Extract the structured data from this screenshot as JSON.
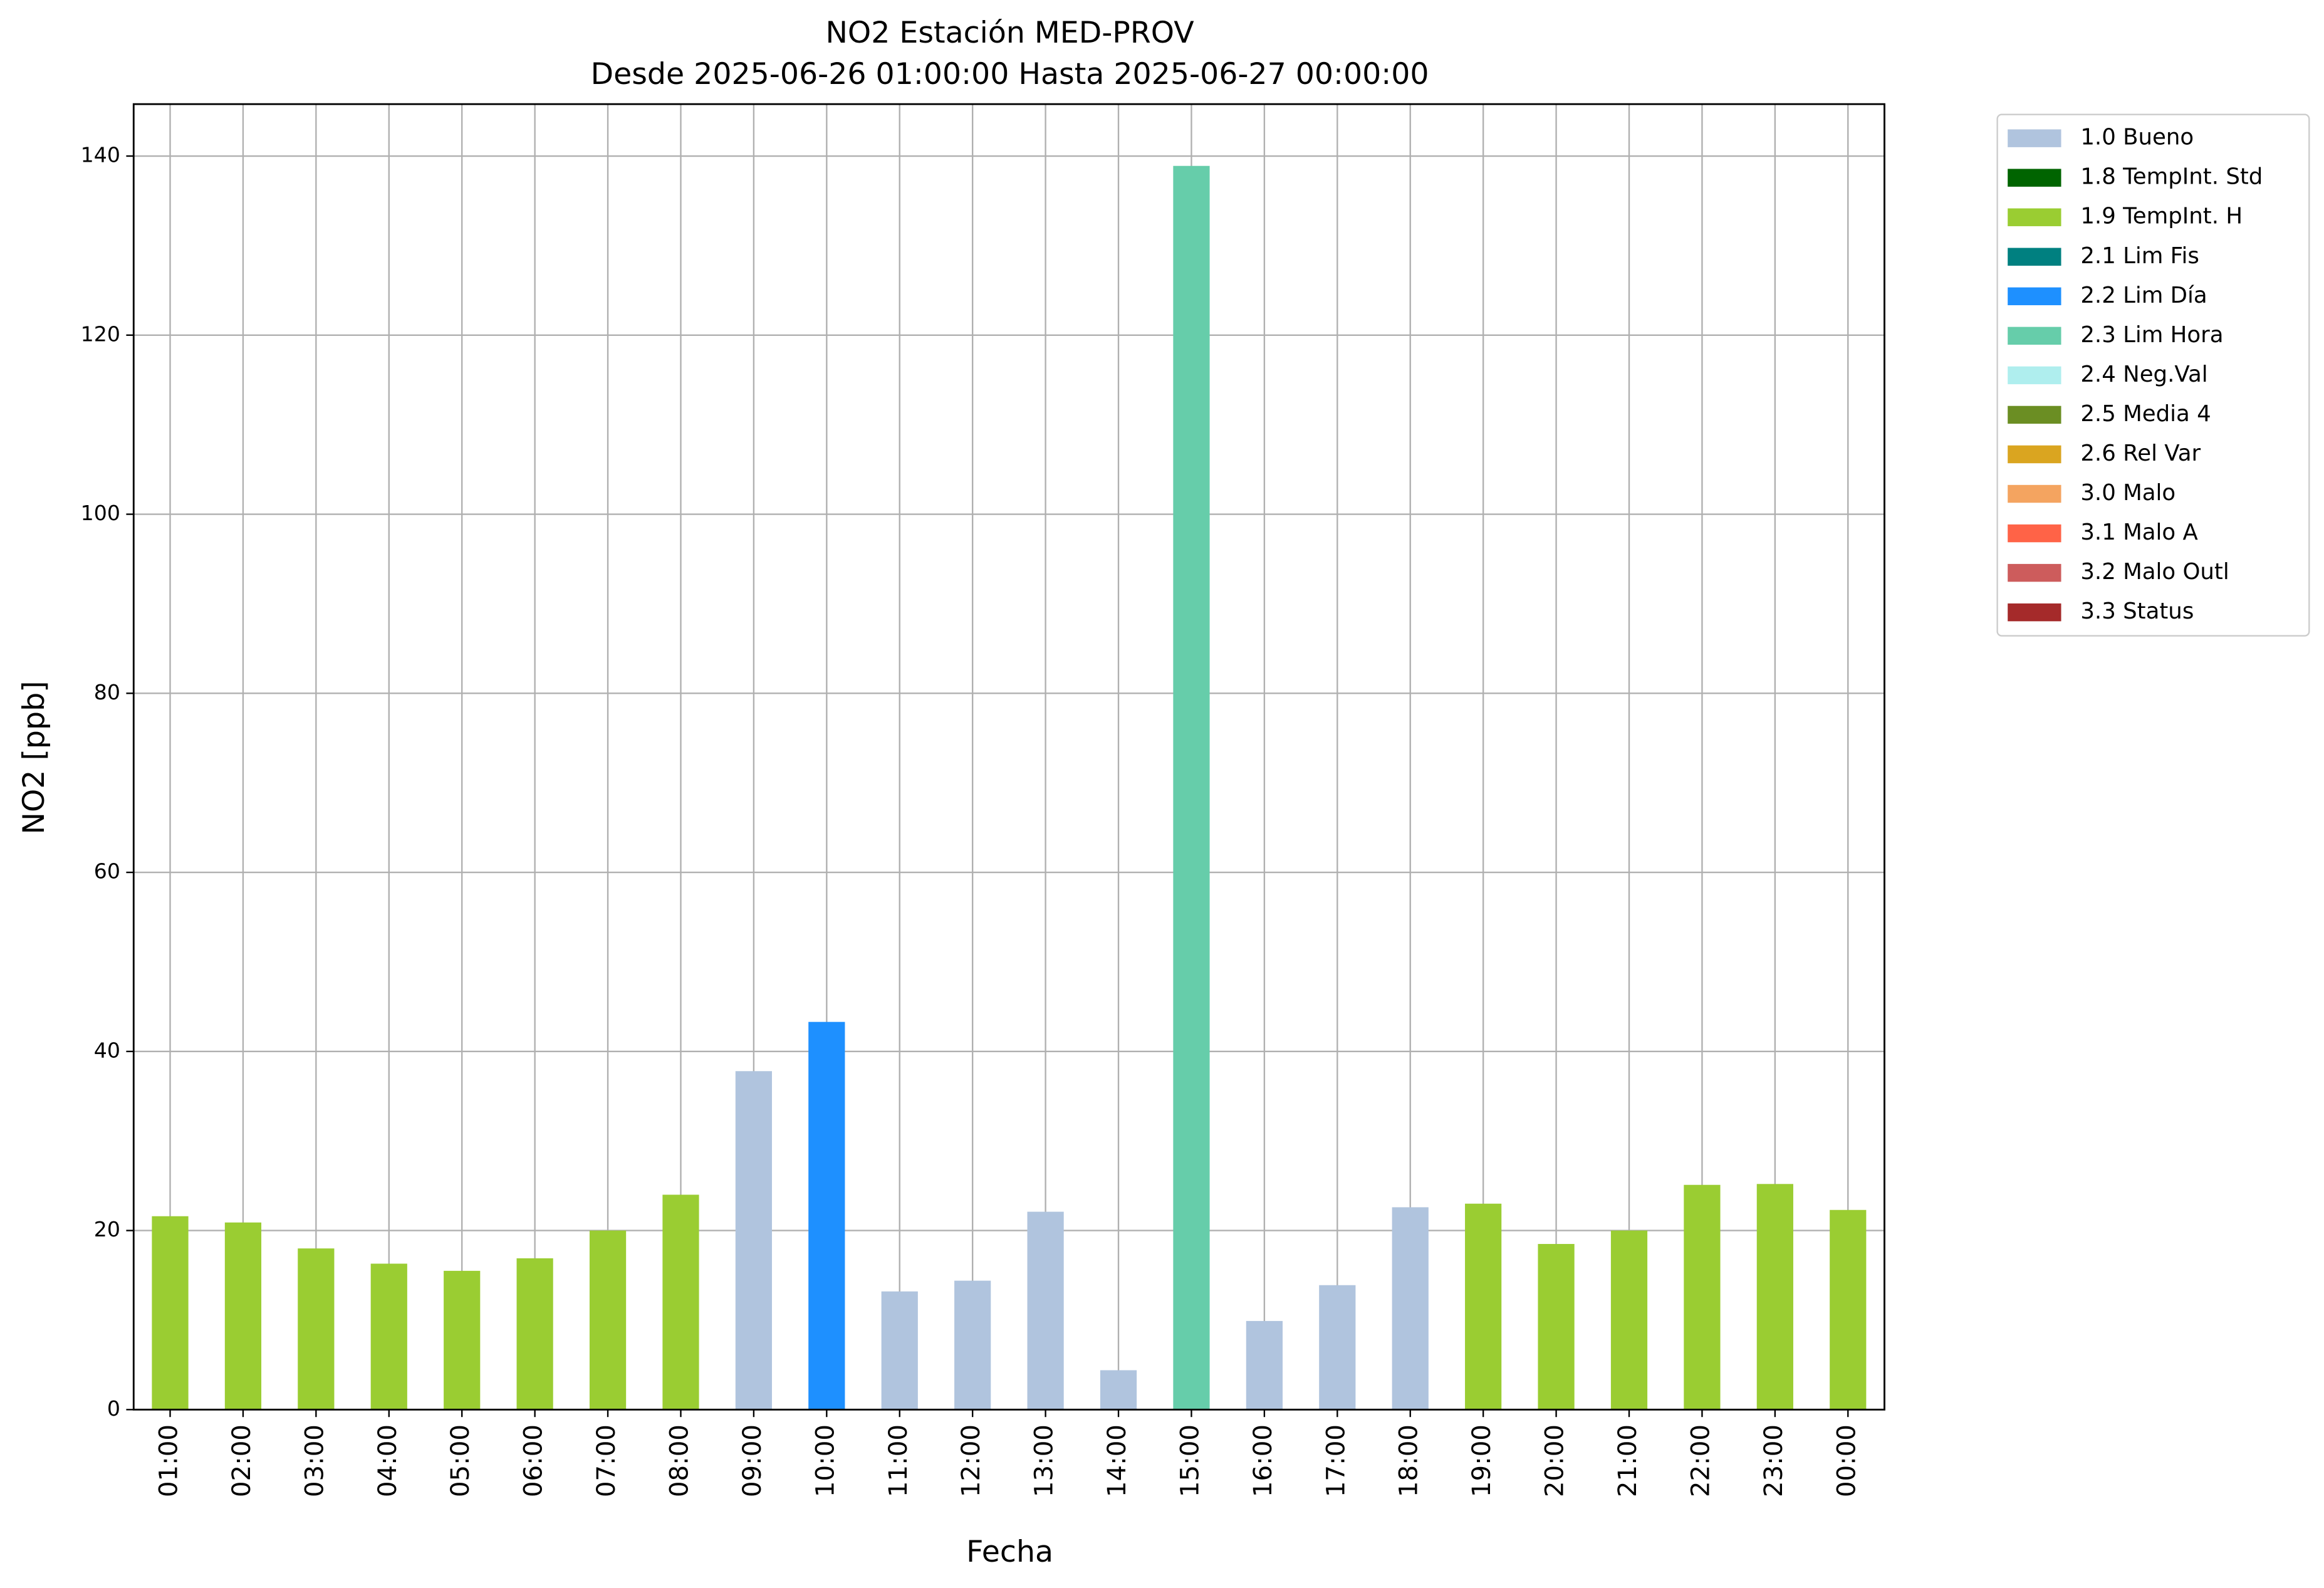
{
  "chart_data": {
    "type": "bar",
    "stacked": true,
    "title": "NO2 Estación MED-PROV",
    "subtitle": "Desde 2025-06-26 01:00:00 Hasta 2025-06-27 00:00:00",
    "x_label": "Fecha",
    "y_label": "NO2 [ppb]",
    "categories": [
      "01:00",
      "02:00",
      "03:00",
      "04:00",
      "05:00",
      "06:00",
      "07:00",
      "08:00",
      "09:00",
      "10:00",
      "11:00",
      "12:00",
      "13:00",
      "14:00",
      "15:00",
      "16:00",
      "17:00",
      "18:00",
      "19:00",
      "20:00",
      "21:00",
      "22:00",
      "23:00",
      "00:00"
    ],
    "series": [
      {
        "name": "1.0 Bueno",
        "color": "#b0c4de",
        "values": [
          null,
          null,
          null,
          null,
          null,
          null,
          null,
          null,
          37.8,
          null,
          13.2,
          14.4,
          22.1,
          4.4,
          null,
          9.9,
          13.9,
          22.6,
          null,
          null,
          null,
          null,
          null,
          null
        ]
      },
      {
        "name": "1.8 TempInt. Std",
        "color": "#006400",
        "values": [
          null,
          null,
          null,
          null,
          null,
          null,
          null,
          null,
          null,
          null,
          null,
          null,
          null,
          null,
          null,
          null,
          null,
          null,
          null,
          null,
          null,
          null,
          null,
          null
        ]
      },
      {
        "name": "1.9 TempInt. H",
        "color": "#9acd32",
        "values": [
          21.6,
          20.9,
          18.0,
          16.3,
          15.5,
          16.9,
          20.0,
          24.0,
          null,
          null,
          null,
          null,
          null,
          null,
          null,
          null,
          null,
          null,
          23.0,
          18.5,
          20.0,
          25.1,
          25.2,
          22.3
        ]
      },
      {
        "name": "2.1 Lim Fis",
        "color": "#008080",
        "values": [
          null,
          null,
          null,
          null,
          null,
          null,
          null,
          null,
          null,
          null,
          null,
          null,
          null,
          null,
          null,
          null,
          null,
          null,
          null,
          null,
          null,
          null,
          null,
          null
        ]
      },
      {
        "name": "2.2 Lim Día",
        "color": "#1e90ff",
        "values": [
          null,
          null,
          null,
          null,
          null,
          null,
          null,
          null,
          null,
          43.3,
          null,
          null,
          null,
          null,
          null,
          null,
          null,
          null,
          null,
          null,
          null,
          null,
          null,
          null
        ]
      },
      {
        "name": "2.3 Lim Hora",
        "color": "#66cdaa",
        "values": [
          null,
          null,
          null,
          null,
          null,
          null,
          null,
          null,
          null,
          null,
          null,
          null,
          null,
          null,
          138.9,
          null,
          null,
          null,
          null,
          null,
          null,
          null,
          null,
          null
        ]
      },
      {
        "name": "2.4 Neg.Val",
        "color": "#afeeee",
        "values": [
          null,
          null,
          null,
          null,
          null,
          null,
          null,
          null,
          null,
          null,
          null,
          null,
          null,
          null,
          null,
          null,
          null,
          null,
          null,
          null,
          null,
          null,
          null,
          null
        ]
      },
      {
        "name": "2.5 Media 4",
        "color": "#6b8e23",
        "values": [
          null,
          null,
          null,
          null,
          null,
          null,
          null,
          null,
          null,
          null,
          null,
          null,
          null,
          null,
          null,
          null,
          null,
          null,
          null,
          null,
          null,
          null,
          null,
          null
        ]
      },
      {
        "name": "2.6 Rel Var",
        "color": "#daa520",
        "values": [
          null,
          null,
          null,
          null,
          null,
          null,
          null,
          null,
          null,
          null,
          null,
          null,
          null,
          null,
          null,
          null,
          null,
          null,
          null,
          null,
          null,
          null,
          null,
          null
        ]
      },
      {
        "name": "3.0 Malo",
        "color": "#f4a460",
        "values": [
          null,
          null,
          null,
          null,
          null,
          null,
          null,
          null,
          null,
          null,
          null,
          null,
          null,
          null,
          null,
          null,
          null,
          null,
          null,
          null,
          null,
          null,
          null,
          null
        ]
      },
      {
        "name": "3.1 Malo A",
        "color": "#ff6347",
        "values": [
          null,
          null,
          null,
          null,
          null,
          null,
          null,
          null,
          null,
          null,
          null,
          null,
          null,
          null,
          null,
          null,
          null,
          null,
          null,
          null,
          null,
          null,
          null,
          null
        ]
      },
      {
        "name": "3.2 Malo Outl",
        "color": "#cd5c5c",
        "values": [
          null,
          null,
          null,
          null,
          null,
          null,
          null,
          null,
          null,
          null,
          null,
          null,
          null,
          null,
          null,
          null,
          null,
          null,
          null,
          null,
          null,
          null,
          null,
          null
        ]
      },
      {
        "name": "3.3 Status",
        "color": "#a52a2a",
        "values": [
          null,
          null,
          null,
          null,
          null,
          null,
          null,
          null,
          null,
          null,
          null,
          null,
          null,
          null,
          null,
          null,
          null,
          null,
          null,
          null,
          null,
          null,
          null,
          null
        ]
      }
    ],
    "ylim": [
      0,
      145.8
    ],
    "yticks": [
      0,
      20,
      40,
      60,
      80,
      100,
      120,
      140
    ],
    "grid": true,
    "legend": "outside right"
  }
}
